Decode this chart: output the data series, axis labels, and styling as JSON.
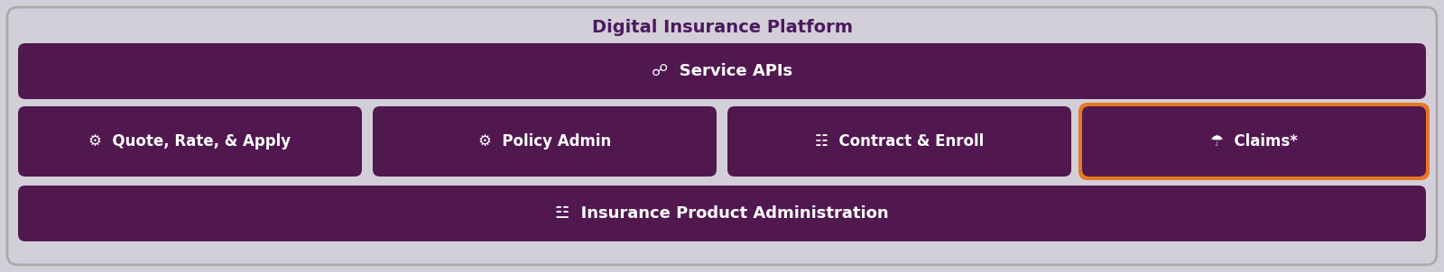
{
  "title": "Digital Insurance Platform",
  "title_fontsize": 14,
  "title_color": "#4a1a5e",
  "outer_bg_color": "#d3cfd8",
  "outer_border_color": "#aaaaaa",
  "bar_color": "#511850",
  "orange_border_color": "#e87722",
  "text_color": "#ffffff",
  "service_api_text": "Service APIs",
  "insurance_admin_text": "Insurance Product Administration",
  "modules": [
    {
      "label": "Quote, Rate, & Apply",
      "highlighted": false
    },
    {
      "label": "Policy Admin",
      "highlighted": false
    },
    {
      "label": "Contract & Enroll",
      "highlighted": false
    },
    {
      "label": "Claims*",
      "highlighted": true
    }
  ],
  "module_fontsize": 12,
  "bar_fontsize": 13,
  "figsize": [
    16.0,
    3.02
  ],
  "dpi": 100
}
